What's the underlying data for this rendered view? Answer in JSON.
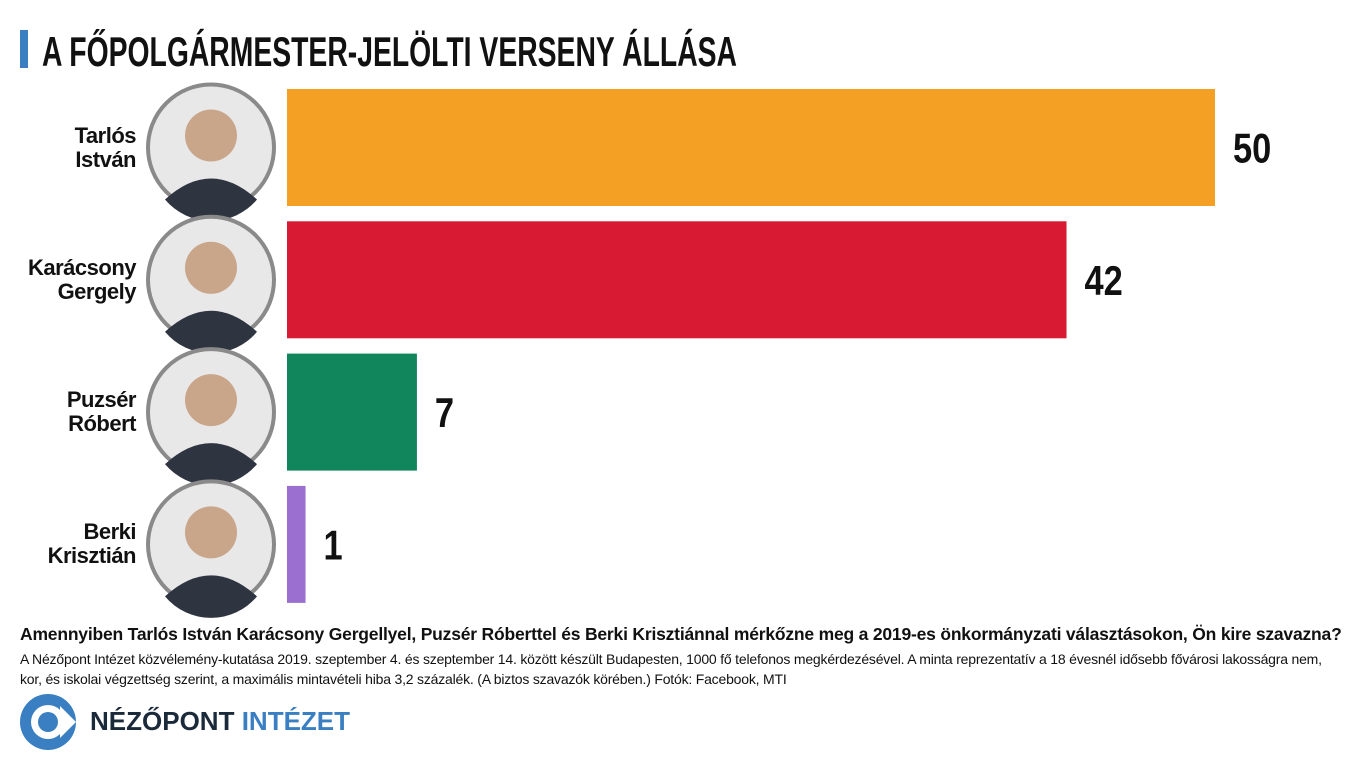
{
  "chart_data": {
    "type": "bar",
    "orientation": "horizontal",
    "title": "A FŐPOLGÁRMESTER-JELÖLTI VERSENY ÁLLÁSA",
    "categories": [
      "Tarlós István",
      "Karácsony Gergely",
      "Puzsér Róbert",
      "Berki Krisztián"
    ],
    "values": [
      50,
      42,
      7,
      1
    ],
    "colors": [
      "#f4a024",
      "#d91a33",
      "#11855c",
      "#9b6fcf"
    ]
  },
  "question": "Amennyiben Tarlós István Karácsony Gergellyel, Puzsér Róberttel és Berki Krisztiánnal mérkőzne meg a 2019-es önkormányzati választásokon, Ön kire szavazna?",
  "note": "A Nézőpont Intézet közvélemény-kutatása 2019. szeptember 4. és szeptember 14. között készült Budapesten, 1000 fő telefonos megkérdezésével. A minta reprezentatív a 18 évesnél idősebb fővárosi lakosságra nem, kor, és iskolai végzettség szerint, a maximális mintavételi hiba 3,2 százalék. (A biztos szavazók körében.) Fotók: Facebook, MTI",
  "logo": {
    "name": "NÉZŐPONT",
    "suffix": "INTÉZET"
  }
}
